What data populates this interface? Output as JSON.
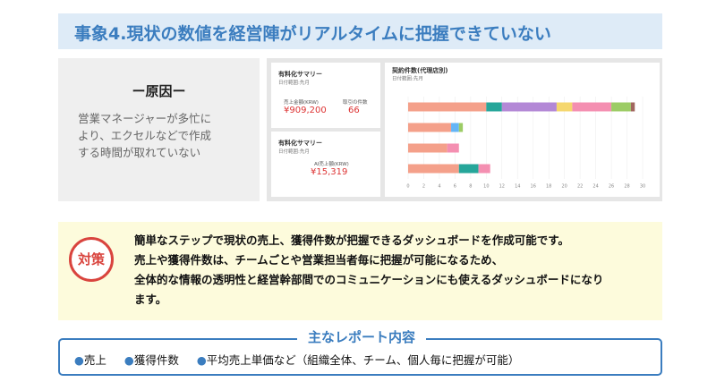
{
  "header": {
    "title": "事象4.現状の数値を経営陣がリアルタイムに把握できていない"
  },
  "cause": {
    "heading": "ー原因ー",
    "lines": [
      "営業マネージャーが多忙に",
      "より、エクセルなどで作成",
      "する時間が取れていない"
    ]
  },
  "dashboard": {
    "cards": [
      {
        "title": "有料化サマリー",
        "subtitle": "日付範囲:先月",
        "metrics": [
          {
            "label": "売上金額(KRW)",
            "value": "¥909,200"
          },
          {
            "label": "取引の件数",
            "value": "66"
          }
        ]
      },
      {
        "title": "有料化サマリー",
        "subtitle": "日付範囲:先月",
        "metrics": [
          {
            "label": "AI売上額(KRW)",
            "value": "¥15,319"
          }
        ]
      }
    ]
  },
  "chart_data": {
    "type": "stacked_barh",
    "title": "契約件数(代理店別)",
    "subtitle": "日付範囲:先月",
    "categories": [
      null,
      null,
      null,
      null
    ],
    "series": [
      {
        "color": "#f4a08a",
        "values": [
          10,
          5.5,
          5,
          6.5
        ]
      },
      {
        "color": "#26a69a",
        "values": [
          2,
          0,
          0,
          2.5
        ]
      },
      {
        "color": "#64b5f6",
        "values": [
          0,
          1,
          0,
          0
        ]
      },
      {
        "color": "#b388d6",
        "values": [
          7,
          0,
          0,
          0
        ]
      },
      {
        "color": "#f5d76e",
        "values": [
          2,
          0,
          0,
          0
        ]
      },
      {
        "color": "#f48fb1",
        "values": [
          5,
          0,
          1.5,
          1.5
        ]
      },
      {
        "color": "#9ccc65",
        "values": [
          2.5,
          0.5,
          0,
          0
        ]
      },
      {
        "color": "#a1665e",
        "values": [
          0.5,
          0,
          0,
          0
        ]
      }
    ],
    "xlim": [
      0,
      30
    ],
    "xticks": [
      0,
      2,
      4,
      6,
      8,
      10,
      12,
      14,
      16,
      18,
      20,
      22,
      24,
      26,
      28,
      30
    ],
    "grid": true
  },
  "measure": {
    "badge": "対策",
    "lines": [
      "簡単なステップで現状の売上、獲得件数が把握できるダッシュボードを作成可能です。",
      "売上や獲得件数は、チームごとや営業担当者毎に把握が可能になるため、",
      "全体的な情報の透明性と経営幹部間でのコミュニケーションにも使えるダッシュボードになり",
      "ます。"
    ]
  },
  "report": {
    "heading": "主なレポート内容",
    "items": [
      "売上",
      "獲得件数",
      "平均売上単価など（組織全体、チーム、個人毎に把握が可能）"
    ]
  }
}
